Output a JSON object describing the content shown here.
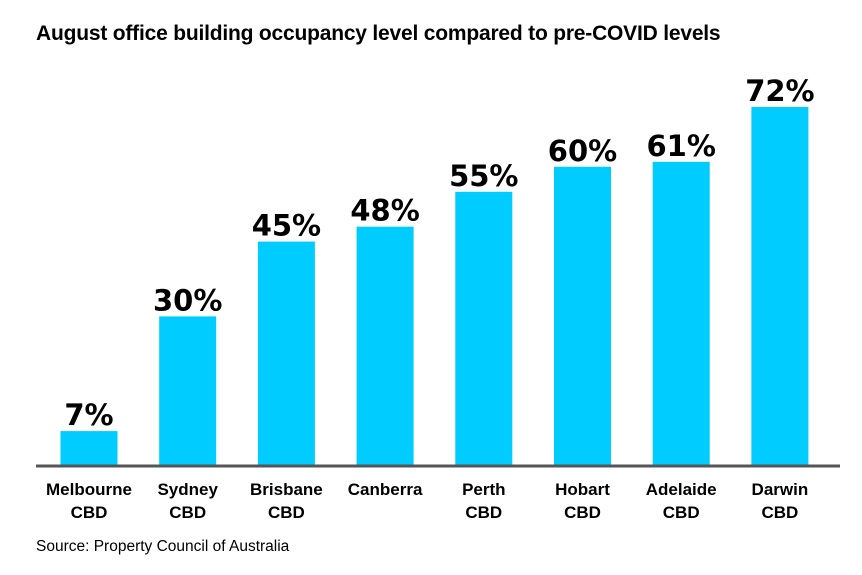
{
  "title": "August office building occupancy level compared to pre-COVID levels",
  "source": "Source: Property Council of Australia",
  "colors": {
    "bar": "#00ccff",
    "axis": "#555555",
    "text": "#000000"
  },
  "chart_data": {
    "type": "bar",
    "title": "August office building occupancy level compared to pre-COVID levels",
    "xlabel": "",
    "ylabel": "",
    "ylim": [
      0,
      72
    ],
    "grid": false,
    "categories": [
      [
        "Melbourne",
        "CBD"
      ],
      [
        "Sydney",
        "CBD"
      ],
      [
        "Brisbane",
        "CBD"
      ],
      [
        "Canberra"
      ],
      [
        "Perth",
        "CBD"
      ],
      [
        "Hobart",
        "CBD"
      ],
      [
        "Adelaide",
        "CBD"
      ],
      [
        "Darwin",
        "CBD"
      ]
    ],
    "values": [
      7,
      30,
      45,
      48,
      55,
      60,
      61,
      72
    ],
    "data_labels": [
      "7%",
      "30%",
      "45%",
      "48%",
      "55%",
      "60%",
      "61%",
      "72%"
    ]
  }
}
